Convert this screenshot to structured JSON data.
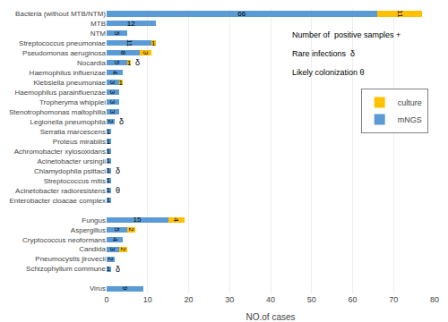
{
  "chart_data": {
    "type": "bar",
    "orientation": "horizontal",
    "stacked": true,
    "data_labels": true,
    "grid": true,
    "legend": "upper right",
    "xlabel": "NO.of cases",
    "xlim": [
      0,
      80
    ],
    "xticks": [
      0,
      10,
      20,
      30,
      40,
      50,
      60,
      70,
      80
    ],
    "categories": [
      "Bacteria (without MTB/NTM)",
      "MTB",
      "NTM",
      "Streptococcus pneumoniae",
      "Pseudomonas aeruginosa",
      "Nocardia",
      "Haemophilus influenzae",
      "Klebsiella pneumoniae",
      "Haemophilus parainfluenzae",
      "Tropheryma whipplei",
      "Stenotrophomonas maltophilia",
      "Legionella pneumophila",
      "Serratia marcescens",
      "Proteus mirabilis",
      "Achromobacter xylosoxidans",
      "Acinetobacter ursingii",
      "Chlamydophila psittaci",
      "Streptococcus mitis",
      "Acinetobacter radioresistens",
      "Enterobacter cloacae complex",
      null,
      "Fungus",
      "Aspergillus",
      "Cryptococcus neoformans",
      "Candida",
      "Pneumocystis jirovecii",
      "Schizophyllum commune",
      null,
      "Virus"
    ],
    "series": [
      {
        "name": "mNGS",
        "color": "#5B9BD5",
        "values": [
          66,
          12,
          5,
          11,
          8,
          5,
          4,
          3,
          3,
          3,
          3,
          2,
          1,
          1,
          1,
          1,
          1,
          1,
          1,
          1,
          0,
          15,
          5,
          4,
          3,
          2,
          1,
          0,
          9
        ]
      },
      {
        "name": "culture",
        "color": "#FFC000",
        "values": [
          11,
          0,
          0,
          1,
          3,
          1,
          0,
          1,
          0,
          0,
          0,
          0,
          0,
          0,
          0,
          0,
          0,
          0,
          0,
          0,
          0,
          4,
          2,
          0,
          2,
          0,
          0,
          0,
          0
        ]
      }
    ],
    "annotations": [
      {
        "text": "Number of  positive samples +"
      },
      {
        "text": "Rare infections  δ"
      },
      {
        "text": "Likely colonization θ"
      },
      {
        "category": "Nocardia",
        "text": "δ"
      },
      {
        "category": "Legionella pneumophila",
        "text": "δ"
      },
      {
        "category": "Chlamydophila psittaci",
        "text": "δ"
      },
      {
        "category": "Acinetobacter radioresistens",
        "text": "θ"
      },
      {
        "category": "Schizophyllum commune",
        "text": "δ"
      }
    ]
  }
}
